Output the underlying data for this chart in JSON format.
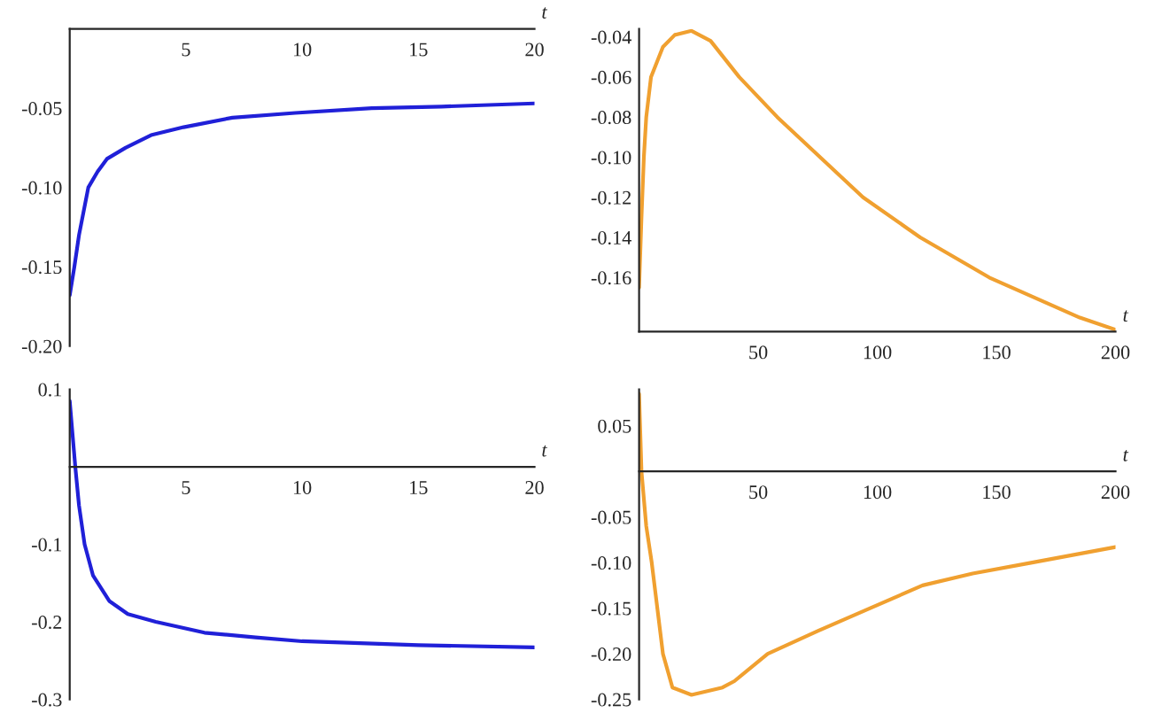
{
  "chart_data": [
    {
      "type": "line",
      "xlabel": "t",
      "x": [
        0,
        0.2,
        0.4,
        0.8,
        1.2,
        1.6,
        2.4,
        3.5,
        4.9,
        7,
        9.7,
        13,
        16,
        20
      ],
      "series": [
        {
          "color": "#2020d8",
          "values": [
            -0.168,
            -0.15,
            -0.13,
            -0.1,
            -0.09,
            -0.082,
            -0.075,
            -0.067,
            -0.062,
            -0.056,
            -0.053,
            -0.05,
            -0.049,
            -0.047
          ]
        }
      ],
      "xlim": [
        0,
        20
      ],
      "ylim": [
        -0.2,
        0
      ],
      "xticks": [
        5,
        10,
        15,
        20
      ],
      "yticks": [
        {
          "value": -0.2,
          "label": "-0.20"
        },
        {
          "value": -0.15,
          "label": "-0.15"
        },
        {
          "value": -0.1,
          "label": "-0.10"
        },
        {
          "value": -0.05,
          "label": "-0.05"
        }
      ]
    },
    {
      "type": "line",
      "xlabel": "t",
      "x": [
        0,
        1,
        2,
        3,
        5,
        10,
        15,
        22,
        30,
        42,
        58,
        76,
        94,
        118,
        147,
        185,
        200
      ],
      "series": [
        {
          "color": "#f0a030",
          "values": [
            -0.165,
            -0.13,
            -0.1,
            -0.08,
            -0.06,
            -0.045,
            -0.039,
            -0.037,
            -0.042,
            -0.06,
            -0.08,
            -0.1,
            -0.12,
            -0.14,
            -0.16,
            -0.18,
            -0.186
          ]
        }
      ],
      "xlim": [
        0,
        200
      ],
      "ylim": [
        -0.187,
        -0.036
      ],
      "xticks": [
        50,
        100,
        150,
        200
      ],
      "yticks": [
        {
          "value": -0.16,
          "label": "-0.16"
        },
        {
          "value": -0.14,
          "label": "-0.14"
        },
        {
          "value": -0.12,
          "label": "-0.12"
        },
        {
          "value": -0.1,
          "label": "-0.10"
        },
        {
          "value": -0.08,
          "label": "-0.08"
        },
        {
          "value": -0.06,
          "label": "-0.06"
        },
        {
          "value": -0.04,
          "label": "-0.04"
        }
      ]
    },
    {
      "type": "line",
      "xlabel": "t",
      "x": [
        0,
        0.24,
        0.4,
        0.64,
        1,
        1.7,
        2.5,
        3.7,
        5.8,
        8,
        10,
        15,
        20
      ],
      "series": [
        {
          "color": "#2020d8",
          "values": [
            0.085,
            0,
            -0.05,
            -0.1,
            -0.14,
            -0.173,
            -0.19,
            -0.2,
            -0.214,
            -0.22,
            -0.225,
            -0.23,
            -0.233
          ]
        }
      ],
      "xlim": [
        0,
        20
      ],
      "ylim": [
        -0.3,
        0.1
      ],
      "xticks": [
        5,
        10,
        15,
        20
      ],
      "yticks": [
        {
          "value": -0.3,
          "label": "-0.3"
        },
        {
          "value": -0.2,
          "label": "-0.2"
        },
        {
          "value": -0.1,
          "label": "-0.1"
        },
        0.1
      ]
    },
    {
      "type": "line",
      "xlabel": "t",
      "x": [
        0,
        1,
        3,
        5.3,
        10,
        14,
        22,
        35,
        40,
        54,
        75,
        97,
        119,
        140,
        165,
        200
      ],
      "series": [
        {
          "color": "#f0a030",
          "values": [
            0.085,
            0,
            -0.06,
            -0.1,
            -0.2,
            -0.237,
            -0.245,
            -0.237,
            -0.23,
            -0.2,
            -0.175,
            -0.15,
            -0.125,
            -0.112,
            -0.1,
            -0.083
          ]
        }
      ],
      "xlim": [
        0,
        200
      ],
      "ylim": [
        -0.25,
        0.09
      ],
      "xticks": [
        50,
        100,
        150,
        200
      ],
      "yticks": [
        {
          "value": -0.25,
          "label": "-0.25"
        },
        {
          "value": -0.2,
          "label": "-0.20"
        },
        {
          "value": -0.15,
          "label": "-0.15"
        },
        {
          "value": -0.1,
          "label": "-0.10"
        },
        {
          "value": -0.05,
          "label": "-0.05"
        },
        0.05
      ]
    }
  ]
}
